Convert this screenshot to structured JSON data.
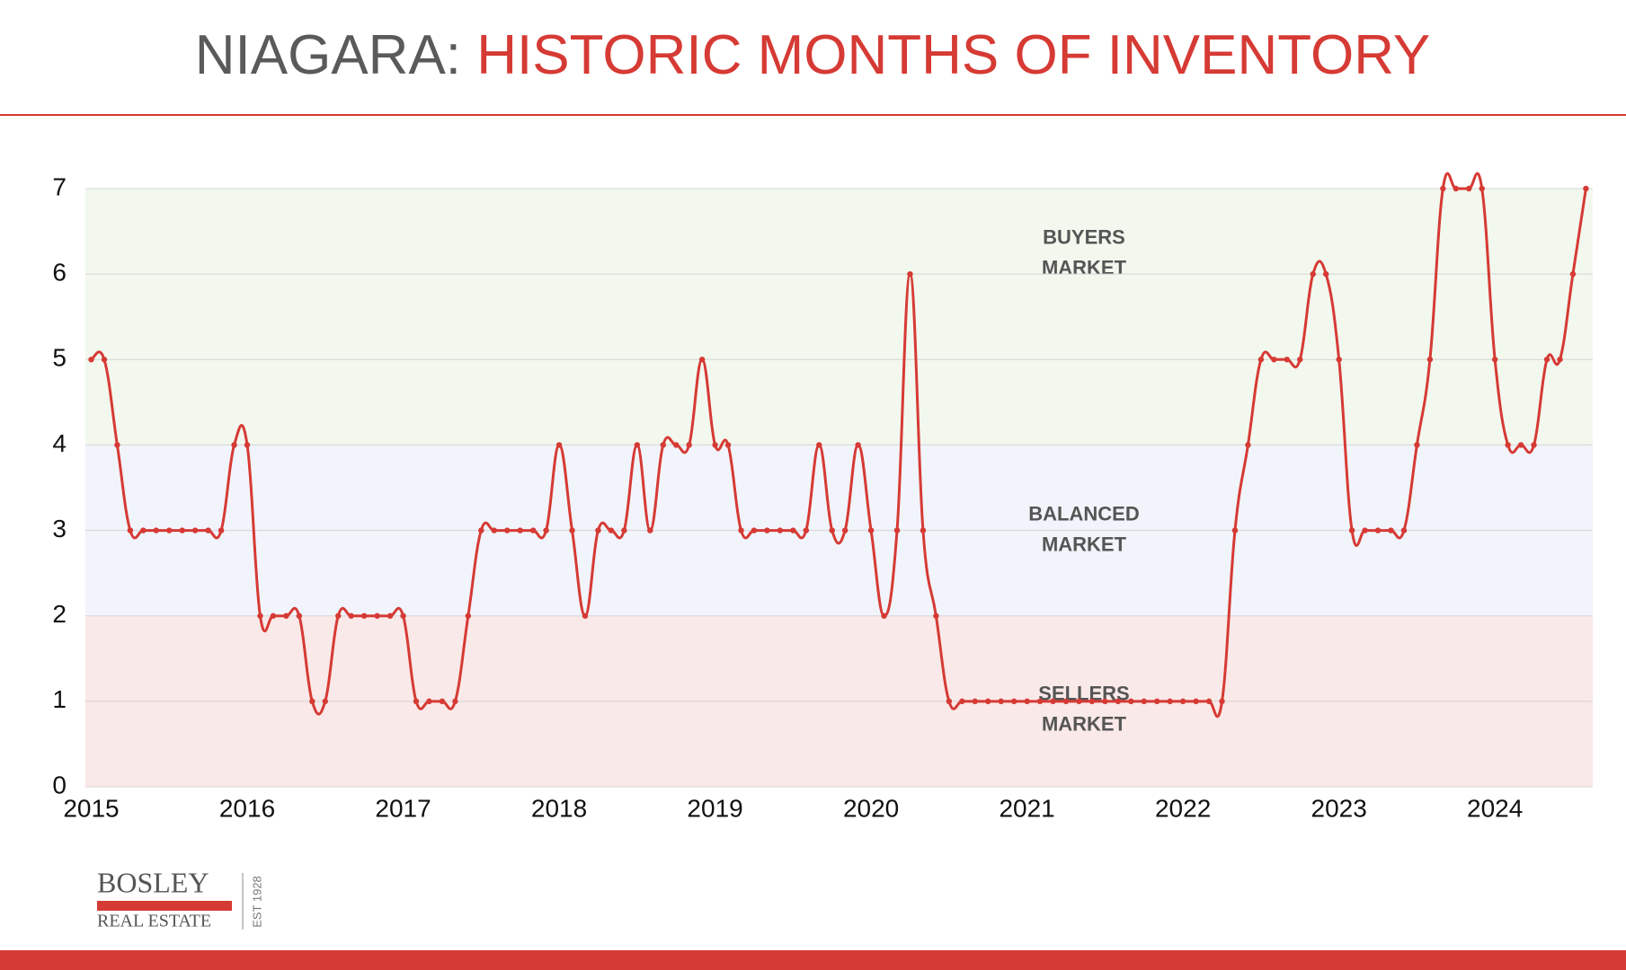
{
  "chart_data": {
    "type": "line",
    "title": [
      "NIAGARA:",
      "HISTORIC MONTHS OF INVENTORY"
    ],
    "categories": [
      "2015",
      null,
      null,
      null,
      null,
      null,
      null,
      null,
      null,
      null,
      null,
      null,
      "2016",
      null,
      null,
      null,
      null,
      null,
      null,
      null,
      null,
      null,
      null,
      null,
      "2017",
      null,
      null,
      null,
      null,
      null,
      null,
      null,
      null,
      null,
      null,
      null,
      "2018",
      null,
      null,
      null,
      null,
      null,
      null,
      null,
      null,
      null,
      null,
      null,
      "2019",
      null,
      null,
      null,
      null,
      null,
      null,
      null,
      null,
      null,
      null,
      null,
      "2020",
      null,
      null,
      null,
      null,
      null,
      null,
      null,
      null,
      null,
      null,
      null,
      "2021",
      null,
      null,
      null,
      null,
      null,
      null,
      null,
      null,
      null,
      null,
      null,
      "2022",
      null,
      null,
      null,
      null,
      null,
      null,
      null,
      null,
      null,
      null,
      null,
      "2023",
      null,
      null,
      null,
      null,
      null,
      null,
      null,
      null,
      null,
      null,
      null,
      "2024",
      null,
      null,
      null,
      null,
      null,
      null,
      null
    ],
    "series": [
      {
        "name": "Months of Inventory",
        "color": "#d63a34",
        "values": [
          5,
          5,
          4,
          3,
          3,
          3,
          3,
          3,
          3,
          3,
          3,
          4,
          4,
          2,
          2,
          2,
          2,
          1,
          1,
          2,
          2,
          2,
          2,
          2,
          2,
          1,
          1,
          1,
          1,
          2,
          3,
          3,
          3,
          3,
          3,
          3,
          4,
          3,
          2,
          3,
          3,
          3,
          4,
          3,
          4,
          4,
          4,
          5,
          4,
          4,
          3,
          3,
          3,
          3,
          3,
          3,
          4,
          3,
          3,
          4,
          3,
          2,
          3,
          6,
          3,
          2,
          1,
          1,
          1,
          1,
          1,
          1,
          1,
          1,
          1,
          1,
          1,
          1,
          1,
          1,
          1,
          1,
          1,
          1,
          1,
          1,
          1,
          1,
          3,
          4,
          5,
          5,
          5,
          5,
          6,
          6,
          5,
          3,
          3,
          3,
          3,
          3,
          4,
          5,
          7,
          7,
          7,
          7,
          5,
          4,
          4,
          4,
          5,
          5,
          6,
          7
        ]
      }
    ],
    "ylim": [
      0,
      7
    ],
    "yticks": [
      0,
      1,
      2,
      3,
      4,
      5,
      6,
      7
    ],
    "grid": true,
    "bands": [
      {
        "from": 4,
        "to": 7,
        "color": "#f2f8ee",
        "label": [
          "BUYERS",
          "MARKET"
        ]
      },
      {
        "from": 2,
        "to": 4,
        "color": "#f1f4fb",
        "label": [
          "BALANCED",
          "MARKET"
        ]
      },
      {
        "from": 0,
        "to": 2,
        "color": "#f9e9e8",
        "label": [
          "SELLERS",
          "MARKET"
        ]
      }
    ]
  },
  "logo": {
    "name": "BOSLEY",
    "tagline": "REAL ESTATE",
    "est": "EST 1928"
  }
}
